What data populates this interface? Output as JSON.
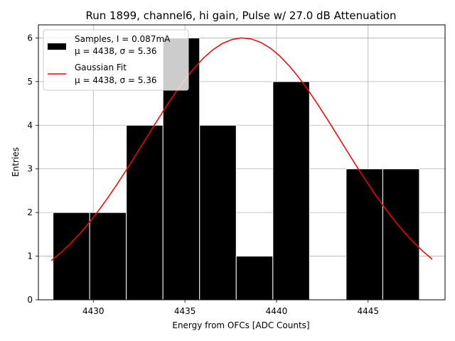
{
  "chart_data": {
    "type": "histogram",
    "title": "Run 1899, channel6, hi gain, Pulse w/ 27.0 dB Attenuation",
    "xlabel": "Energy from OFCs [ADC Counts]",
    "ylabel": "Entries",
    "xlim": [
      4427.0,
      4449.2
    ],
    "ylim": [
      0,
      6.3
    ],
    "xticks": [
      4430,
      4435,
      4440,
      4445
    ],
    "yticks": [
      0,
      1,
      2,
      3,
      4,
      5,
      6
    ],
    "grid": true,
    "legend_position": "top-left",
    "bins": {
      "edges": [
        4427.8,
        4429.8,
        4431.8,
        4433.8,
        4435.8,
        4437.8,
        4439.8,
        4441.8,
        4443.8,
        4445.8,
        4447.8
      ],
      "counts": [
        2,
        2,
        4,
        6,
        4,
        1,
        5,
        0,
        3,
        3
      ],
      "color": "#000000",
      "edgecolor": "#ffffff"
    },
    "series": [
      {
        "name": "Samples, I = 0.087mA",
        "stats": "μ = 4438, σ = 5.36",
        "kind": "histogram",
        "color": "#000000"
      },
      {
        "name": "Gaussian Fit",
        "stats": "μ = 4438, σ = 5.36",
        "kind": "line",
        "color": "#ff0000",
        "amplitude": 6.0,
        "mean": 4438.15,
        "sigma": 5.36,
        "x_range": [
          4427.7,
          4448.5
        ]
      }
    ]
  }
}
